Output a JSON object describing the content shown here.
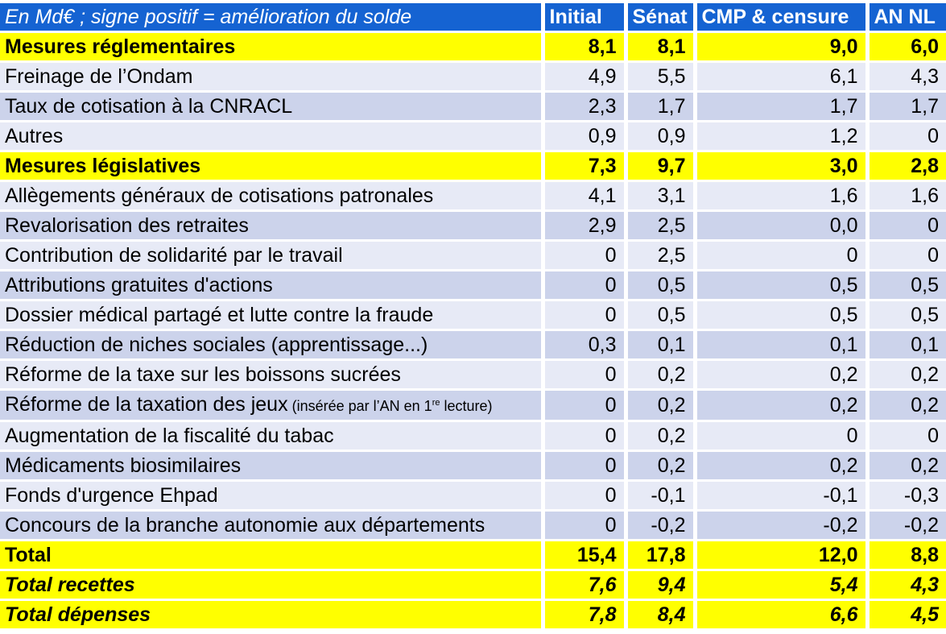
{
  "chart_data": {
    "type": "table",
    "title": "En Md€ ; signe positif = amélioration du solde",
    "columns": [
      "Initial",
      "Sénat",
      "CMP & censure",
      "AN NL"
    ],
    "rows": [
      {
        "label": "Mesures réglementaires",
        "values": [
          "8,1",
          "8,1",
          "9,0",
          "6,0"
        ],
        "style": "section"
      },
      {
        "label": "Freinage de l’Ondam",
        "values": [
          "4,9",
          "5,5",
          "6,1",
          "4,3"
        ],
        "style": "light"
      },
      {
        "label": "Taux de cotisation à la CNRACL",
        "values": [
          "2,3",
          "1,7",
          "1,7",
          "1,7"
        ],
        "style": "dark"
      },
      {
        "label": "Autres",
        "values": [
          "0,9",
          "0,9",
          "1,2",
          "0"
        ],
        "style": "light"
      },
      {
        "label": "Mesures législatives",
        "values": [
          "7,3",
          "9,7",
          "3,0",
          "2,8"
        ],
        "style": "section"
      },
      {
        "label": "Allègements généraux de cotisations patronales",
        "values": [
          "4,1",
          "3,1",
          "1,6",
          "1,6"
        ],
        "style": "light"
      },
      {
        "label": "Revalorisation des retraites",
        "values": [
          "2,9",
          "2,5",
          "0,0",
          "0"
        ],
        "style": "dark"
      },
      {
        "label": "Contribution de solidarité par le travail",
        "values": [
          "0",
          "2,5",
          "0",
          "0"
        ],
        "style": "light"
      },
      {
        "label": "Attributions gratuites d'actions",
        "values": [
          "0",
          "0,5",
          "0,5",
          "0,5"
        ],
        "style": "dark"
      },
      {
        "label": "Dossier médical partagé et lutte contre la fraude",
        "values": [
          "0",
          "0,5",
          "0,5",
          "0,5"
        ],
        "style": "light"
      },
      {
        "label": "Réduction de niches sociales (apprentissage...)",
        "values": [
          "0,3",
          "0,1",
          "0,1",
          "0,1"
        ],
        "style": "dark"
      },
      {
        "label": "Réforme de la taxe sur les boissons sucrées",
        "values": [
          "0",
          "0,2",
          "0,2",
          "0,2"
        ],
        "style": "light"
      },
      {
        "label": "Réforme de la taxation des jeux",
        "note": {
          "pre": " (insérée par l’AN en 1",
          "sup": "re",
          "post": " lecture)"
        },
        "values": [
          "0",
          "0,2",
          "0,2",
          "0,2"
        ],
        "style": "dark"
      },
      {
        "label": "Augmentation de la fiscalité du tabac",
        "values": [
          "0",
          "0,2",
          "0",
          "0"
        ],
        "style": "light"
      },
      {
        "label": "Médicaments biosimilaires",
        "values": [
          "0",
          "0,2",
          "0,2",
          "0,2"
        ],
        "style": "dark"
      },
      {
        "label": "Fonds d'urgence Ehpad",
        "values": [
          "0",
          "-0,1",
          "-0,1",
          "-0,3"
        ],
        "style": "light"
      },
      {
        "label": "Concours de la branche autonomie aux départements",
        "values": [
          "0",
          "-0,2",
          "-0,2",
          "-0,2"
        ],
        "style": "dark"
      },
      {
        "label": "Total",
        "values": [
          "15,4",
          "17,8",
          "12,0",
          "8,8"
        ],
        "style": "total"
      },
      {
        "label": "Total recettes",
        "values": [
          "7,6",
          "9,4",
          "5,4",
          "4,3"
        ],
        "style": "total-italic"
      },
      {
        "label": "Total dépenses",
        "values": [
          "7,8",
          "8,4",
          "6,6",
          "4,5"
        ],
        "style": "total-italic"
      }
    ],
    "colors": {
      "header_bg": "#1563D2",
      "header_text": "#FFFFFF",
      "section_bg": "#FFFF00",
      "row_light_bg": "#E7EAF6",
      "row_dark_bg": "#CCD3EB",
      "body_text": "#000000",
      "separator": "#FFFFFF"
    }
  }
}
